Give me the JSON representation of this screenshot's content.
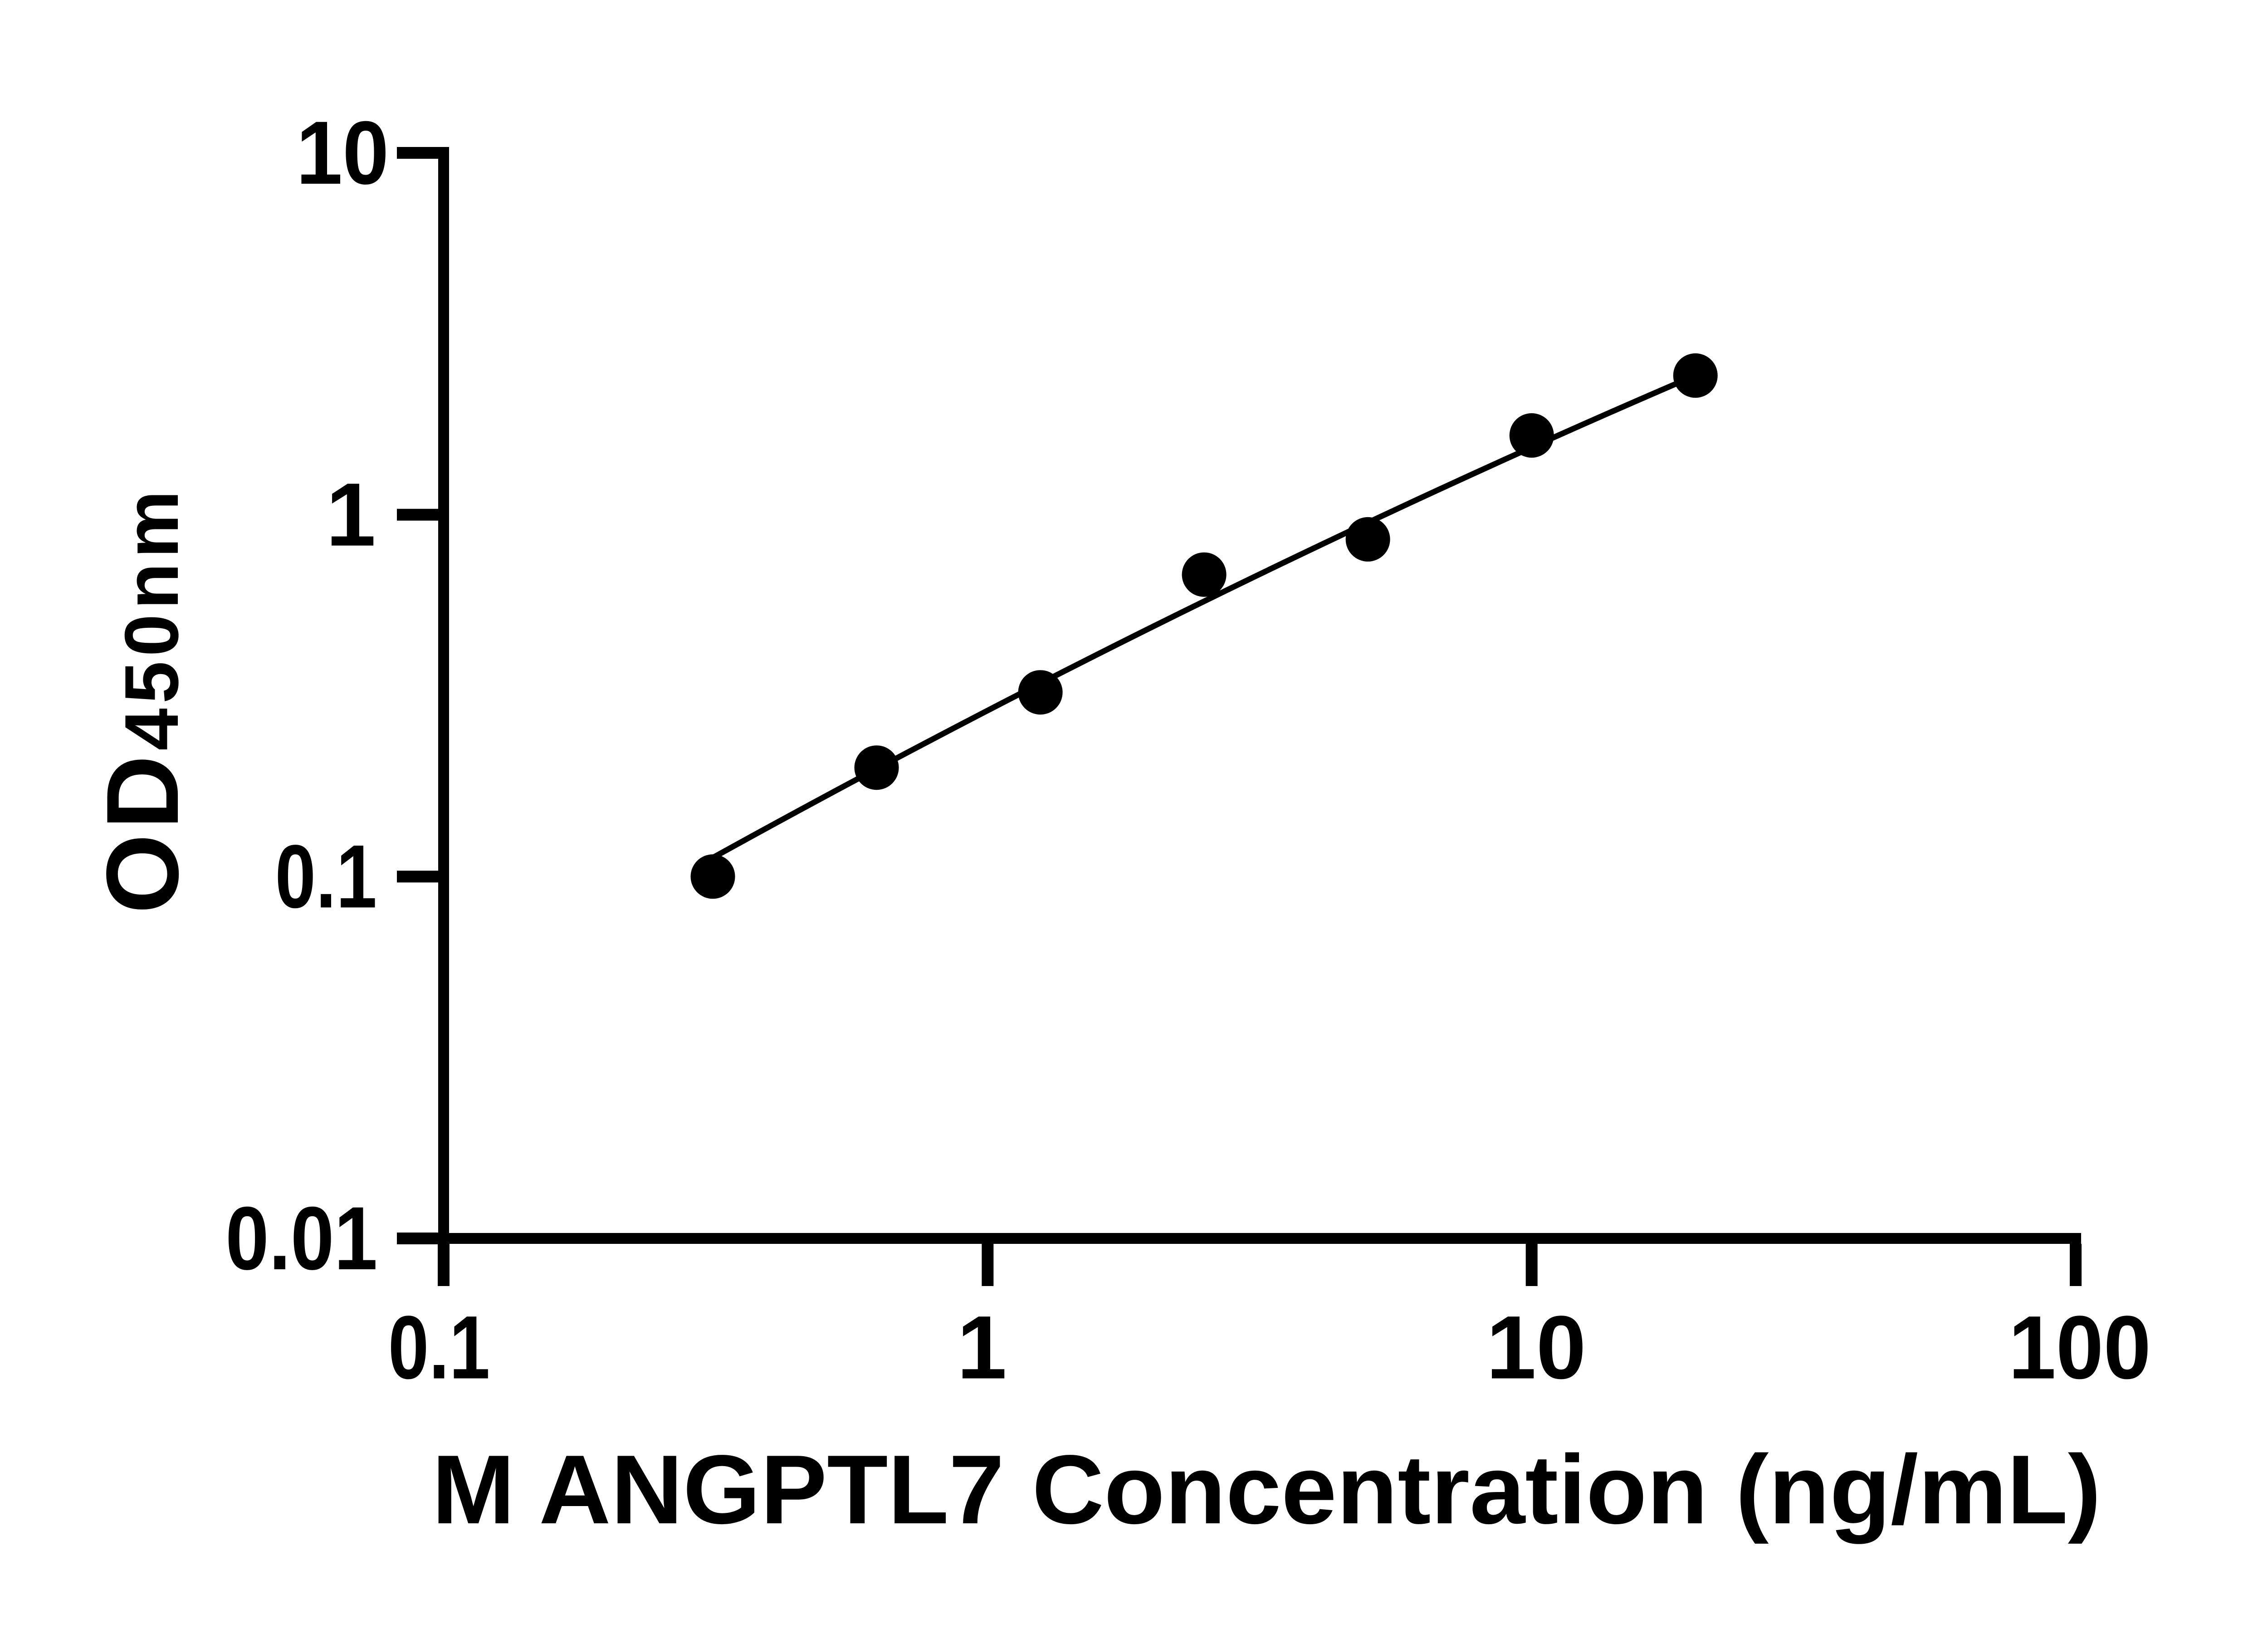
{
  "figure": {
    "background_color": "#ffffff",
    "ink_color": "#000000"
  },
  "chart_data": {
    "type": "scatter",
    "title": "",
    "xlabel": "M ANGPTL7 Concentration (ng/mL)",
    "ylabel_main": "OD",
    "ylabel_sub": "450nm",
    "x_scale": "log10",
    "y_scale": "log10",
    "xlim": [
      0.1,
      100
    ],
    "ylim": [
      0.01,
      10
    ],
    "x_tick_labels": [
      "0.1",
      "1",
      "10",
      "100"
    ],
    "x_tick_values": [
      0.1,
      1,
      10,
      100
    ],
    "y_tick_labels": [
      "10",
      "1",
      "0.1",
      "0.01"
    ],
    "y_tick_values": [
      10,
      1,
      0.1,
      0.01
    ],
    "grid": false,
    "legend": "none",
    "series": [
      {
        "name": "standard-points",
        "marker": "filled-circle",
        "color": "#000000",
        "x": [
          0.3125,
          0.625,
          1.25,
          2.5,
          5,
          10,
          20
        ],
        "y": [
          0.1,
          0.2,
          0.323,
          0.683,
          0.855,
          1.656,
          2.424
        ]
      },
      {
        "name": "fit-line",
        "type": "line",
        "color": "#000000",
        "x": [
          0.3125,
          0.625,
          1.25,
          2.5,
          5,
          10,
          20
        ],
        "y": [
          0.1128,
          0.1985,
          0.342,
          0.5762,
          0.9512,
          1.5369,
          2.425
        ]
      }
    ]
  }
}
